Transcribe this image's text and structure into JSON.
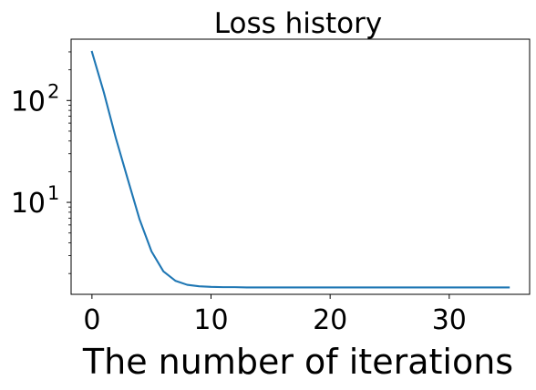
{
  "chart_data": {
    "type": "line",
    "title": "Loss history",
    "xlabel": "The number of iterations",
    "ylabel": "",
    "yscale": "log",
    "xlim": [
      -1.75,
      36.75
    ],
    "ylim": [
      1.25,
      400
    ],
    "grid": false,
    "x_ticks": [
      0,
      10,
      20,
      30
    ],
    "x_tick_labels": [
      "0",
      "10",
      "20",
      "30"
    ],
    "y_ticks": [
      {
        "value": 10,
        "base": "10",
        "exponent": "1"
      },
      {
        "value": 100,
        "base": "10",
        "exponent": "2"
      }
    ],
    "series": [
      {
        "color": "#1f77b4",
        "x": [
          0,
          1,
          2,
          3,
          4,
          5,
          6,
          7,
          8,
          9,
          10,
          11,
          12,
          13,
          14,
          15,
          16,
          17,
          18,
          19,
          20,
          21,
          22,
          23,
          24,
          25,
          26,
          27,
          28,
          29,
          30,
          31,
          32,
          33,
          34,
          35
        ],
        "values": [
          300,
          120,
          43,
          17,
          6.8,
          3.3,
          2.1,
          1.7,
          1.55,
          1.5,
          1.48,
          1.47,
          1.47,
          1.46,
          1.46,
          1.46,
          1.46,
          1.46,
          1.46,
          1.46,
          1.46,
          1.46,
          1.46,
          1.46,
          1.46,
          1.46,
          1.46,
          1.46,
          1.46,
          1.46,
          1.46,
          1.46,
          1.46,
          1.46,
          1.46,
          1.46
        ]
      }
    ]
  }
}
